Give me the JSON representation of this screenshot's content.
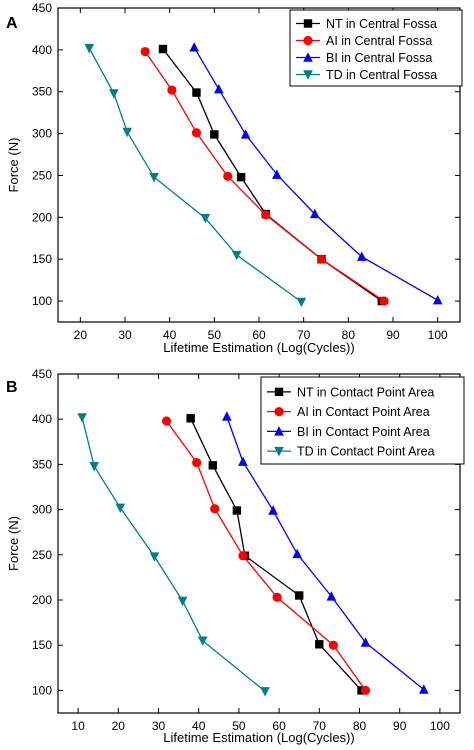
{
  "chart_data": [
    {
      "panel": "A",
      "type": "line",
      "xlabel": "Lifetime Estimation (Log(Cycles))",
      "ylabel": "Force (N)",
      "xlim": [
        15,
        105
      ],
      "ylim": [
        75,
        450
      ],
      "xticks": [
        "20",
        "30",
        "40",
        "50",
        "60",
        "70",
        "80",
        "90",
        "100"
      ],
      "yticks": [
        "100",
        "150",
        "200",
        "250",
        "300",
        "350",
        "400",
        "450"
      ],
      "grid": false,
      "legend_position": "top-right",
      "series": [
        {
          "name": "NT in Central Fossa",
          "color": "#000000",
          "marker": "square",
          "points": [
            [
              38.5,
              401
            ],
            [
              46,
              349
            ],
            [
              50,
              299
            ],
            [
              56,
              248
            ],
            [
              61.5,
              204
            ],
            [
              74,
              150
            ],
            [
              87.5,
              100
            ]
          ]
        },
        {
          "name": "AI in Central Fossa",
          "color": "#ff0000",
          "marker": "circle",
          "points": [
            [
              34.5,
              398
            ],
            [
              40.5,
              352
            ],
            [
              46,
              301
            ],
            [
              53,
              249
            ],
            [
              61.5,
              203
            ],
            [
              74,
              150
            ],
            [
              88,
              100
            ]
          ]
        },
        {
          "name": "BI in Central Fossa",
          "color": "#0000ff",
          "marker": "triangle-up",
          "points": [
            [
              45.5,
              403
            ],
            [
              51,
              353
            ],
            [
              57,
              299
            ],
            [
              64,
              251
            ],
            [
              72.5,
              204
            ],
            [
              83,
              153
            ],
            [
              100,
              101
            ]
          ]
        },
        {
          "name": "TD in Central Fossa",
          "color": "#008080",
          "marker": "triangle-down",
          "points": [
            [
              22,
              402
            ],
            [
              27.5,
              348
            ],
            [
              30.5,
              302
            ],
            [
              36.5,
              248
            ],
            [
              48,
              199
            ],
            [
              55,
              155
            ],
            [
              69.5,
              99
            ]
          ]
        }
      ]
    },
    {
      "panel": "B",
      "type": "line",
      "xlabel": "Lifetime Estimation (Log(Cycles))",
      "ylabel": "Force (N)",
      "xlim": [
        5,
        105
      ],
      "ylim": [
        75,
        450
      ],
      "xticks": [
        "10",
        "20",
        "30",
        "40",
        "50",
        "60",
        "70",
        "80",
        "90",
        "100"
      ],
      "yticks": [
        "100",
        "150",
        "200",
        "250",
        "300",
        "350",
        "400",
        "450"
      ],
      "grid": false,
      "legend_position": "top-right",
      "series": [
        {
          "name": "NT in Contact Point Area",
          "color": "#000000",
          "marker": "square",
          "points": [
            [
              38,
              401
            ],
            [
              43.5,
              349
            ],
            [
              49.5,
              299
            ],
            [
              51.5,
              249
            ],
            [
              65,
              205
            ],
            [
              70,
              151
            ],
            [
              80.5,
              100
            ]
          ]
        },
        {
          "name": "AI in Contact Point Area",
          "color": "#ff0000",
          "marker": "circle",
          "points": [
            [
              32,
              398
            ],
            [
              39.5,
              352
            ],
            [
              44,
              301
            ],
            [
              51,
              249
            ],
            [
              59.5,
              203
            ],
            [
              73.5,
              150
            ],
            [
              81.5,
              100
            ]
          ]
        },
        {
          "name": "BI in Contact Point Area",
          "color": "#0000ff",
          "marker": "triangle-up",
          "points": [
            [
              47,
              403
            ],
            [
              51,
              353
            ],
            [
              58.5,
              299
            ],
            [
              64.5,
              251
            ],
            [
              73,
              204
            ],
            [
              81.5,
              153
            ],
            [
              96,
              101
            ]
          ]
        },
        {
          "name": "TD in Contact Point Area",
          "color": "#008080",
          "marker": "triangle-down",
          "points": [
            [
              11,
              402
            ],
            [
              14,
              348
            ],
            [
              20.5,
              302
            ],
            [
              29,
              248
            ],
            [
              36,
              199
            ],
            [
              41,
              155
            ],
            [
              56.5,
              99
            ]
          ]
        }
      ]
    }
  ]
}
